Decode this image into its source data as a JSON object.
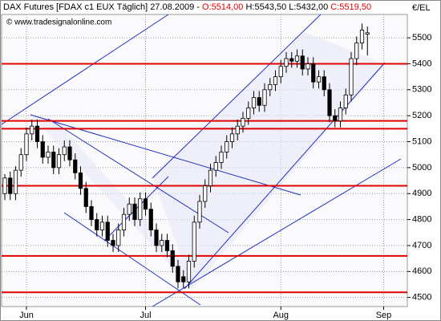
{
  "chart_data": {
    "type": "candlestick",
    "title": "DAX Futures [FDAX c1 EUX  Täglich] 27.08.2009 -",
    "ohlc_text": {
      "open": "O:5514,00",
      "high": "H:5543,50",
      "low": "L:5432,00",
      "close": "C:5519,50"
    },
    "watermark": "© www.tradesignalonline.com",
    "y_axis_label": "€/EL",
    "categories": [
      null,
      null,
      null,
      null,
      "Jun",
      null,
      null,
      null,
      null,
      null,
      null,
      null,
      null,
      null,
      null,
      null,
      null,
      null,
      null,
      null,
      null,
      null,
      null,
      null,
      null,
      null,
      "Jul",
      null,
      null,
      null,
      null,
      null,
      null,
      null,
      null,
      null,
      null,
      null,
      null,
      null,
      null,
      null,
      null,
      null,
      null,
      null,
      null,
      null,
      null,
      null,
      null,
      "Aug",
      null,
      null,
      null,
      null,
      null,
      null,
      null,
      null,
      null,
      null,
      null,
      null,
      null,
      null,
      null,
      null,
      null,
      null,
      "Sep"
    ],
    "open": [
      4900,
      4960,
      4900,
      4990,
      5050,
      5130,
      5160,
      5100,
      5040,
      5060,
      5000,
      5050,
      5080,
      5030,
      4980,
      4920,
      4850,
      4800,
      4760,
      4790,
      4720,
      4700,
      4760,
      4820,
      4860,
      4800,
      4880,
      4840,
      4760,
      4700,
      4720,
      4680,
      4620,
      4580,
      4560,
      4640,
      4790,
      4870,
      4930,
      4990,
      5020,
      5060,
      5100,
      5130,
      5160,
      5190,
      5230,
      5270,
      5240,
      5300,
      5320,
      5350,
      5390,
      5420,
      5410,
      5430,
      5380,
      5400,
      5330,
      5350,
      5300,
      5200,
      5180,
      5230,
      5280,
      5420,
      5480,
      5514,
      null,
      null,
      null
    ],
    "high": [
      4975,
      4985,
      5005,
      5075,
      5155,
      5185,
      5185,
      5125,
      5085,
      5085,
      5075,
      5105,
      5105,
      5055,
      5005,
      4945,
      4875,
      4825,
      4815,
      4815,
      4745,
      4785,
      4845,
      4885,
      4885,
      4905,
      4905,
      4865,
      4785,
      4745,
      4745,
      4705,
      4645,
      4605,
      4665,
      4815,
      4895,
      4955,
      5015,
      5045,
      5085,
      5125,
      5155,
      5185,
      5215,
      5255,
      5295,
      5295,
      5325,
      5345,
      5375,
      5415,
      5445,
      5445,
      5455,
      5455,
      5425,
      5425,
      5375,
      5375,
      5325,
      5225,
      5255,
      5305,
      5445,
      5505,
      5555,
      5543.5,
      null,
      null,
      null
    ],
    "low": [
      4875,
      4875,
      4875,
      4965,
      5025,
      5105,
      5075,
      5015,
      5015,
      4975,
      4975,
      5025,
      5005,
      4955,
      4895,
      4825,
      4775,
      4735,
      4735,
      4695,
      4675,
      4675,
      4735,
      4795,
      4775,
      4775,
      4815,
      4735,
      4675,
      4675,
      4655,
      4595,
      4535,
      4535,
      4535,
      4615,
      4765,
      4845,
      4905,
      4965,
      4995,
      5035,
      5075,
      5105,
      5135,
      5165,
      5205,
      5215,
      5215,
      5275,
      5295,
      5325,
      5365,
      5385,
      5385,
      5355,
      5355,
      5305,
      5305,
      5275,
      5175,
      5155,
      5155,
      5205,
      5255,
      5395,
      5455,
      5432,
      null,
      null,
      null
    ],
    "close": [
      4960,
      4900,
      4990,
      5050,
      5130,
      5160,
      5100,
      5040,
      5060,
      5000,
      5050,
      5080,
      5030,
      4980,
      4920,
      4850,
      4800,
      4760,
      4790,
      4720,
      4700,
      4760,
      4820,
      4860,
      4800,
      4880,
      4840,
      4760,
      4700,
      4720,
      4680,
      4620,
      4560,
      4560,
      4640,
      4790,
      4870,
      4930,
      4990,
      5020,
      5060,
      5100,
      5130,
      5160,
      5190,
      5230,
      5270,
      5240,
      5300,
      5320,
      5350,
      5390,
      5420,
      5410,
      5430,
      5380,
      5400,
      5330,
      5350,
      5300,
      5200,
      5180,
      5230,
      5280,
      5420,
      5480,
      5530,
      5519.5,
      null,
      null,
      null
    ],
    "ylim": [
      4465,
      5590
    ],
    "yticks": [
      4500,
      4600,
      4700,
      4800,
      4900,
      5000,
      5100,
      5200,
      5300,
      5400,
      5500
    ],
    "grid": true,
    "reference_lines": [
      5400,
      5180,
      5150,
      4930,
      4660,
      4520
    ],
    "reference_color": "#e00000",
    "up_color": "#ffffff",
    "down_color": "#000000"
  }
}
